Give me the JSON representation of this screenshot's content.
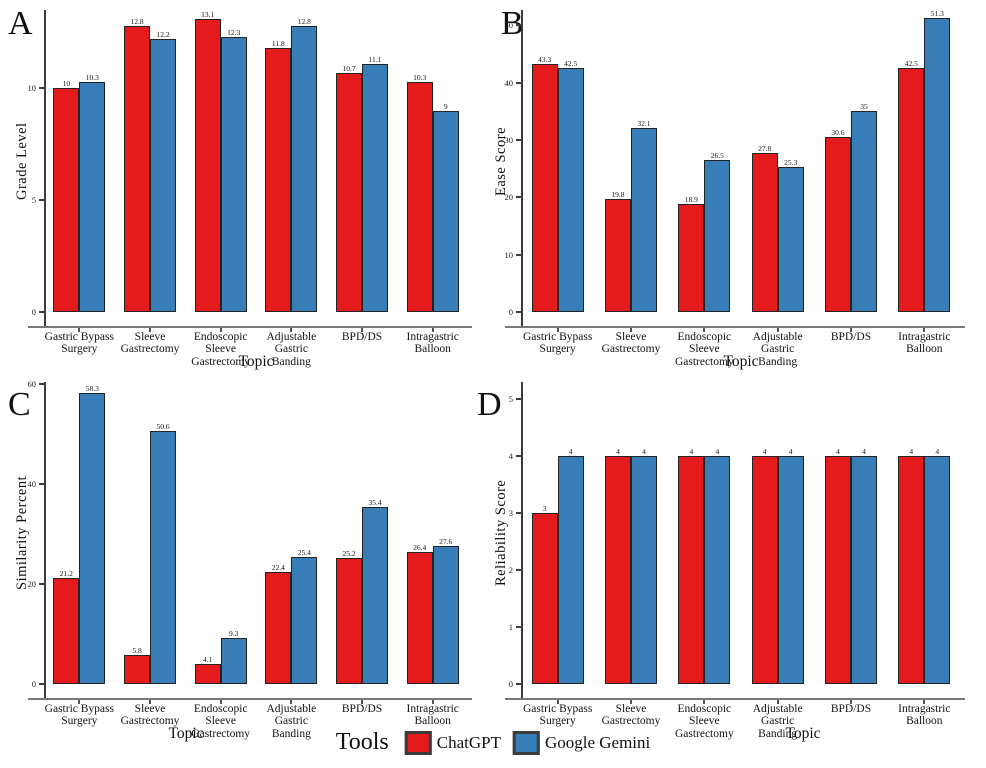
{
  "figure": {
    "background": "#ffffff"
  },
  "colors": {
    "chatgpt": "#e41a1c",
    "gemini": "#377eb8",
    "axis": "#3c3c3c"
  },
  "legend": {
    "title": "Tools",
    "items": [
      {
        "label": "ChatGPT",
        "color": "#e41a1c"
      },
      {
        "label": "Google Gemini",
        "color": "#377eb8"
      }
    ]
  },
  "chart_data": [
    {
      "panel": "A",
      "type": "bar",
      "title": "",
      "xlabel": "Topic",
      "ylabel": "Grade Level",
      "ylim": [
        0,
        13.5
      ],
      "yticks": [
        0,
        5,
        10
      ],
      "grid": false,
      "legend_position": "bottom",
      "categories": [
        "Gastric Bypass\nSurgery",
        "Sleeve\nGastrectomy",
        "Endoscopic\nSleeve\nGastrectomy",
        "Adjustable\nGastric Banding",
        "BPD/DS",
        "Intragastric\nBalloon"
      ],
      "series": [
        {
          "name": "ChatGPT",
          "color": "#e41a1c",
          "values": [
            10,
            12.8,
            13.1,
            11.8,
            10.7,
            10.3
          ]
        },
        {
          "name": "Google Gemini",
          "color": "#377eb8",
          "values": [
            10.3,
            12.2,
            12.3,
            12.8,
            11.1,
            9
          ]
        }
      ]
    },
    {
      "panel": "B",
      "type": "bar",
      "title": "",
      "xlabel": "Topic",
      "ylabel": "Ease Score",
      "ylim": [
        0,
        52.7
      ],
      "yticks": [
        0,
        10,
        20,
        30,
        40,
        50
      ],
      "grid": false,
      "legend_position": "bottom",
      "categories": [
        "Gastric Bypass\nSurgery",
        "Sleeve\nGastrectomy",
        "Endoscopic\nSleeve\nGastrectomy",
        "Adjustable\nGastric Banding",
        "BPD/DS",
        "Intragastric\nBalloon"
      ],
      "series": [
        {
          "name": "ChatGPT",
          "color": "#e41a1c",
          "values": [
            43.3,
            19.8,
            18.9,
            27.8,
            30.6,
            42.5
          ]
        },
        {
          "name": "Google Gemini",
          "color": "#377eb8",
          "values": [
            42.5,
            32.1,
            26.5,
            25.3,
            35,
            51.3
          ]
        }
      ]
    },
    {
      "panel": "C",
      "type": "bar",
      "title": "",
      "xlabel": "Topic",
      "ylabel": "Similarity Percent",
      "ylim": [
        0,
        60.5
      ],
      "yticks": [
        0,
        20,
        40,
        60
      ],
      "grid": false,
      "legend_position": "bottom",
      "categories": [
        "Gastric Bypass\nSurgery",
        "Sleeve\nGastrectomy",
        "Endoscopic\nSleeve\nGastrectomy",
        "Adjustable\nGastric Banding",
        "BPD/DS",
        "Intragastric\nBalloon"
      ],
      "series": [
        {
          "name": "ChatGPT",
          "color": "#e41a1c",
          "values": [
            21.2,
            5.8,
            4.1,
            22.4,
            25.2,
            26.4
          ]
        },
        {
          "name": "Google Gemini",
          "color": "#377eb8",
          "values": [
            58.3,
            50.6,
            9.3,
            25.4,
            35.4,
            27.6
          ]
        }
      ]
    },
    {
      "panel": "D",
      "type": "bar",
      "title": "",
      "xlabel": "Topic",
      "ylabel": "Reliability Score",
      "ylim": [
        0,
        5.3
      ],
      "yticks": [
        0,
        1,
        2,
        3,
        4,
        5
      ],
      "grid": false,
      "legend_position": "bottom",
      "categories": [
        "Gastric Bypass\nSurgery",
        "Sleeve\nGastrectomy",
        "Endoscopic\nSleeve\nGastrectomy",
        "Adjustable\nGastric Banding",
        "BPD/DS",
        "Intragastric\nBalloon"
      ],
      "series": [
        {
          "name": "ChatGPT",
          "color": "#e41a1c",
          "values": [
            3,
            4,
            4,
            4,
            4,
            4
          ]
        },
        {
          "name": "Google Gemini",
          "color": "#377eb8",
          "values": [
            4,
            4,
            4,
            4,
            4,
            4
          ]
        }
      ]
    }
  ]
}
